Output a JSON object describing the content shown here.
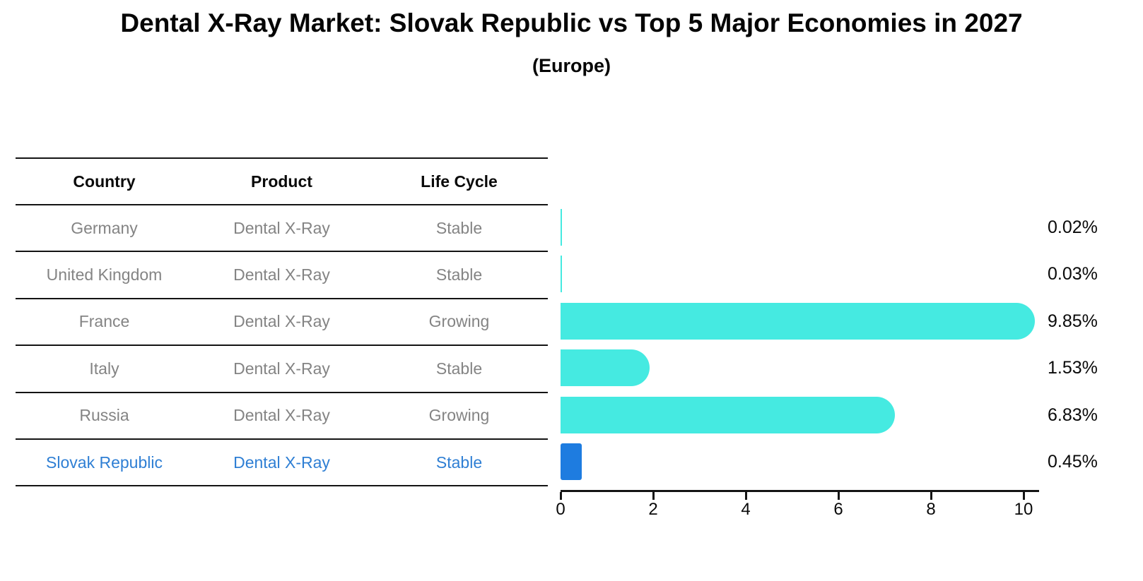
{
  "title": "Dental X-Ray Market: Slovak Republic vs Top 5 Major Economies in 2027",
  "subtitle": "(Europe)",
  "table": {
    "headers": [
      "Country",
      "Product",
      "Life Cycle"
    ],
    "rows": [
      {
        "country": "Germany",
        "product": "Dental X-Ray",
        "life_cycle": "Stable",
        "highlight": false
      },
      {
        "country": "United Kingdom",
        "product": "Dental X-Ray",
        "life_cycle": "Stable",
        "highlight": false
      },
      {
        "country": "France",
        "product": "Dental X-Ray",
        "life_cycle": "Growing",
        "highlight": false
      },
      {
        "country": "Italy",
        "product": "Dental X-Ray",
        "life_cycle": "Stable",
        "highlight": false
      },
      {
        "country": "Russia",
        "product": "Dental X-Ray",
        "life_cycle": "Growing",
        "highlight": false
      },
      {
        "country": "Slovak Republic",
        "product": "Dental X-Ray",
        "life_cycle": "Stable",
        "highlight": true
      }
    ]
  },
  "chart_data": {
    "type": "bar",
    "orientation": "horizontal",
    "title": "Dental X-Ray Market: Slovak Republic vs Top 5 Major Economies in 2027",
    "subtitle": "(Europe)",
    "categories": [
      "Germany",
      "United Kingdom",
      "France",
      "Italy",
      "Russia",
      "Slovak Republic"
    ],
    "values": [
      0.02,
      0.03,
      9.85,
      1.53,
      6.83,
      0.45
    ],
    "value_labels": [
      "0.02%",
      "0.03%",
      "9.85%",
      "1.53%",
      "6.83%",
      "0.45%"
    ],
    "bar_styles": [
      "solid",
      "solid",
      "solid",
      "solid",
      "solid",
      "dashed-outline"
    ],
    "bar_colors": [
      "#45EAE1",
      "#45EAE1",
      "#45EAE1",
      "#45EAE1",
      "#45EAE1",
      "#1E7CE0"
    ],
    "xlabel": "",
    "ylabel": "",
    "xlim": [
      0,
      10.35
    ],
    "x_major_tick_labels": [
      "0",
      "2",
      "4",
      "6",
      "8",
      "10"
    ],
    "x_major_tick_values": [
      0,
      2,
      4,
      6,
      8,
      10
    ],
    "grid": false,
    "legend": false
  },
  "colors": {
    "bar_cyan": "#45EAE1",
    "bar_blue": "#1E7CE0",
    "highlight_text": "#2F7FD4",
    "body_text": "#848484",
    "heading_text": "#0A0A0A",
    "axis": "#141414"
  }
}
